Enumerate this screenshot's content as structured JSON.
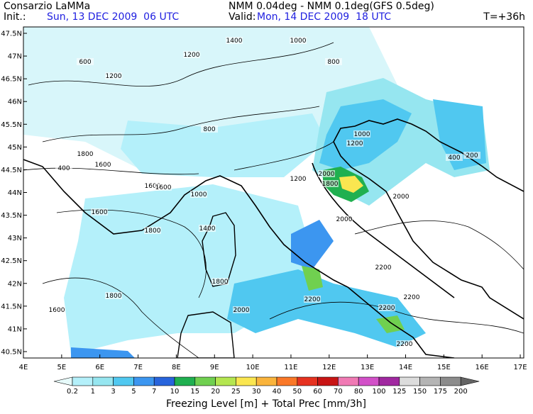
{
  "header": {
    "left_title": "Consarzio LaMMa",
    "init_label": "Init.:",
    "init_value": "Sun, 13 DEC 2009  06 UTC",
    "right_title": "NMM 0.04deg - NMM 0.1deg(GFS 0.5deg)",
    "valid_label": "Valid:",
    "valid_value": "Mon, 14 DEC 2009  18 UTC",
    "lead": "T=+36h"
  },
  "lat_labels": [
    "47.5N",
    "47N",
    "46.5N",
    "46N",
    "45.5N",
    "45N",
    "44.5N",
    "44N",
    "43.5N",
    "43N",
    "42.5N",
    "42N",
    "41.5N",
    "41N",
    "40.5N"
  ],
  "lon_labels": [
    "4E",
    "5E",
    "6E",
    "7E",
    "8E",
    "9E",
    "10E",
    "11E",
    "12E",
    "13E",
    "14E",
    "15E",
    "16E",
    "17E"
  ],
  "colorbar": {
    "title": "Freezing Level [m] + Total Prec [mm/3h]",
    "levels": [
      "0.2",
      "1",
      "3",
      "5",
      "7",
      "10",
      "15",
      "20",
      "25",
      "30",
      "40",
      "50",
      "60",
      "70",
      "80",
      "100",
      "125",
      "150",
      "175",
      "200"
    ],
    "colors": [
      "#e6fafa",
      "#b4f0fa",
      "#96e6f0",
      "#50c8f0",
      "#3c96f0",
      "#2864dc",
      "#20b050",
      "#70d050",
      "#b4e650",
      "#fae650",
      "#fab43c",
      "#fa7828",
      "#e63220",
      "#c81414",
      "#f07ab4",
      "#d250c8",
      "#a028a0",
      "#dcdcdc",
      "#b4b4b4",
      "#8c8c8c",
      "#646464"
    ]
  },
  "contour_labels": [
    "1200",
    "1400",
    "1000",
    "800",
    "1200",
    "600",
    "400",
    "1600",
    "1600",
    "1800",
    "1800",
    "1600",
    "1400",
    "1000",
    "800",
    "1200",
    "1800",
    "2000",
    "2000",
    "2200",
    "2200",
    "2200",
    "2000",
    "2200",
    "2200",
    "1800",
    "1600",
    "1000",
    "1200",
    "200",
    "400",
    "1600",
    "1800",
    "2000"
  ]
}
